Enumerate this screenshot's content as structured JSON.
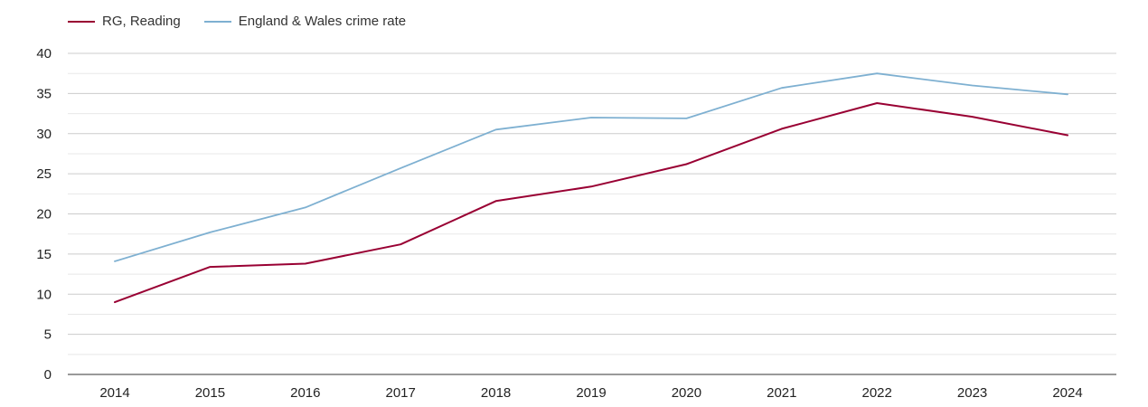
{
  "chart_data": {
    "type": "line",
    "categories": [
      "2014",
      "2015",
      "2016",
      "2017",
      "2018",
      "2019",
      "2020",
      "2021",
      "2022",
      "2023",
      "2024"
    ],
    "series": [
      {
        "name": "RG, Reading",
        "color": "#990033",
        "values": [
          9.0,
          13.4,
          13.8,
          16.2,
          21.6,
          23.4,
          26.2,
          30.6,
          33.8,
          32.1,
          29.8
        ]
      },
      {
        "name": "England & Wales crime rate",
        "color": "#7eb0d1",
        "values": [
          14.1,
          17.7,
          20.8,
          25.7,
          30.5,
          32.0,
          31.9,
          35.7,
          37.5,
          36.0,
          34.9
        ]
      }
    ],
    "yticks": [
      "0",
      "5",
      "10",
      "15",
      "20",
      "25",
      "30",
      "35",
      "40"
    ],
    "ylim": [
      0,
      40
    ],
    "grid": true,
    "legend_position": "top-left"
  }
}
